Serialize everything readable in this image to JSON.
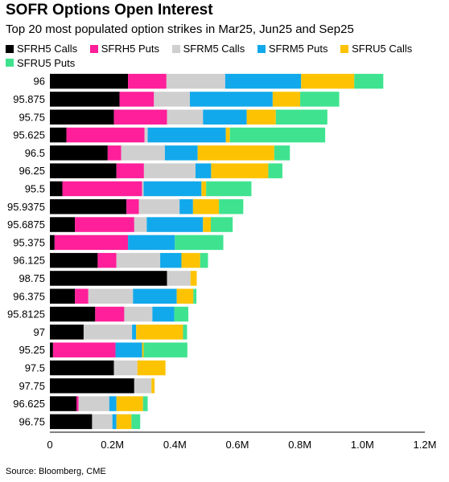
{
  "chart_data": {
    "type": "bar",
    "orientation": "horizontal",
    "stacked": true,
    "title": "SOFR Options Open Interest",
    "subtitle": "Top 20 most populated option strikes in Mar25, Jun25 and Sep25",
    "source": "Source: Bloomberg, CME",
    "xlim": [
      0,
      1200000
    ],
    "xticks": [
      0,
      200000,
      400000,
      600000,
      800000,
      1000000,
      1200000
    ],
    "xtick_labels": [
      "0",
      "0.2M",
      "0.4M",
      "0.6M",
      "0.8M",
      "1.0M",
      "1.2M"
    ],
    "grid": false,
    "legend_position": "top-left",
    "categories": [
      "96",
      "95.875",
      "95.75",
      "95.625",
      "96.5",
      "96.25",
      "95.5",
      "95.9375",
      "95.6875",
      "95.375",
      "96.125",
      "98.75",
      "96.375",
      "95.8125",
      "97",
      "95.25",
      "97.5",
      "97.75",
      "96.625",
      "96.75"
    ],
    "series": [
      {
        "name": "SFRH5 Calls",
        "color": "#000000",
        "values": [
          250000,
          223000,
          205000,
          53000,
          185000,
          213000,
          40000,
          245000,
          80000,
          15000,
          153000,
          375000,
          80000,
          145000,
          108000,
          10000,
          205000,
          270000,
          85000,
          135000
        ]
      },
      {
        "name": "SFRH5 Puts",
        "color": "#ff1f9a",
        "values": [
          123000,
          110000,
          170000,
          250000,
          43000,
          88000,
          255000,
          40000,
          190000,
          235000,
          60000,
          0,
          43000,
          93000,
          0,
          200000,
          0,
          0,
          7000,
          0
        ]
      },
      {
        "name": "SFRM5 Calls",
        "color": "#cfcfcf",
        "values": [
          188000,
          115000,
          115000,
          10000,
          140000,
          165000,
          5000,
          130000,
          40000,
          0,
          140000,
          75000,
          143000,
          90000,
          155000,
          0,
          75000,
          55000,
          98000,
          65000
        ]
      },
      {
        "name": "SFRM5 Puts",
        "color": "#12a9ec",
        "values": [
          243000,
          265000,
          140000,
          250000,
          105000,
          50000,
          185000,
          43000,
          180000,
          150000,
          68000,
          0,
          140000,
          70000,
          13000,
          85000,
          0,
          0,
          23000,
          13000
        ]
      },
      {
        "name": "SFRU5 Calls",
        "color": "#fdc302",
        "values": [
          170000,
          88000,
          93000,
          13000,
          245000,
          183000,
          15000,
          83000,
          25000,
          0,
          60000,
          20000,
          53000,
          0,
          150000,
          5000,
          90000,
          10000,
          85000,
          48000
        ]
      },
      {
        "name": "SFRU5 Puts",
        "color": "#3fe38f",
        "values": [
          93000,
          125000,
          165000,
          305000,
          50000,
          45000,
          145000,
          78000,
          70000,
          155000,
          25000,
          0,
          10000,
          45000,
          13000,
          140000,
          0,
          0,
          15000,
          28000
        ]
      }
    ]
  }
}
